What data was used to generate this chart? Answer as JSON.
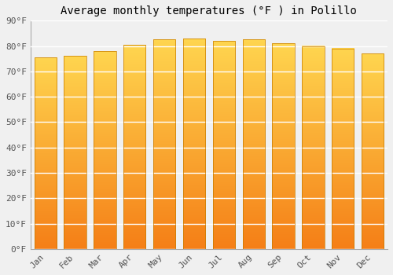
{
  "title": "Average monthly temperatures (°F ) in Polillo",
  "months": [
    "Jan",
    "Feb",
    "Mar",
    "Apr",
    "May",
    "Jun",
    "Jul",
    "Aug",
    "Sep",
    "Oct",
    "Nov",
    "Dec"
  ],
  "values": [
    75.5,
    76.0,
    78.0,
    80.5,
    82.5,
    83.0,
    82.0,
    82.5,
    81.0,
    80.0,
    79.0,
    77.0
  ],
  "bar_color_light": "#FFD54F",
  "bar_color_dark": "#F57F17",
  "bar_edge_color": "#C67C00",
  "background_color": "#f0f0f0",
  "grid_color": "#ffffff",
  "ytick_labels": [
    "0°F",
    "10°F",
    "20°F",
    "30°F",
    "40°F",
    "50°F",
    "60°F",
    "70°F",
    "80°F",
    "90°F"
  ],
  "ytick_values": [
    0,
    10,
    20,
    30,
    40,
    50,
    60,
    70,
    80,
    90
  ],
  "ylim": [
    0,
    90
  ],
  "title_fontsize": 10,
  "tick_fontsize": 8
}
